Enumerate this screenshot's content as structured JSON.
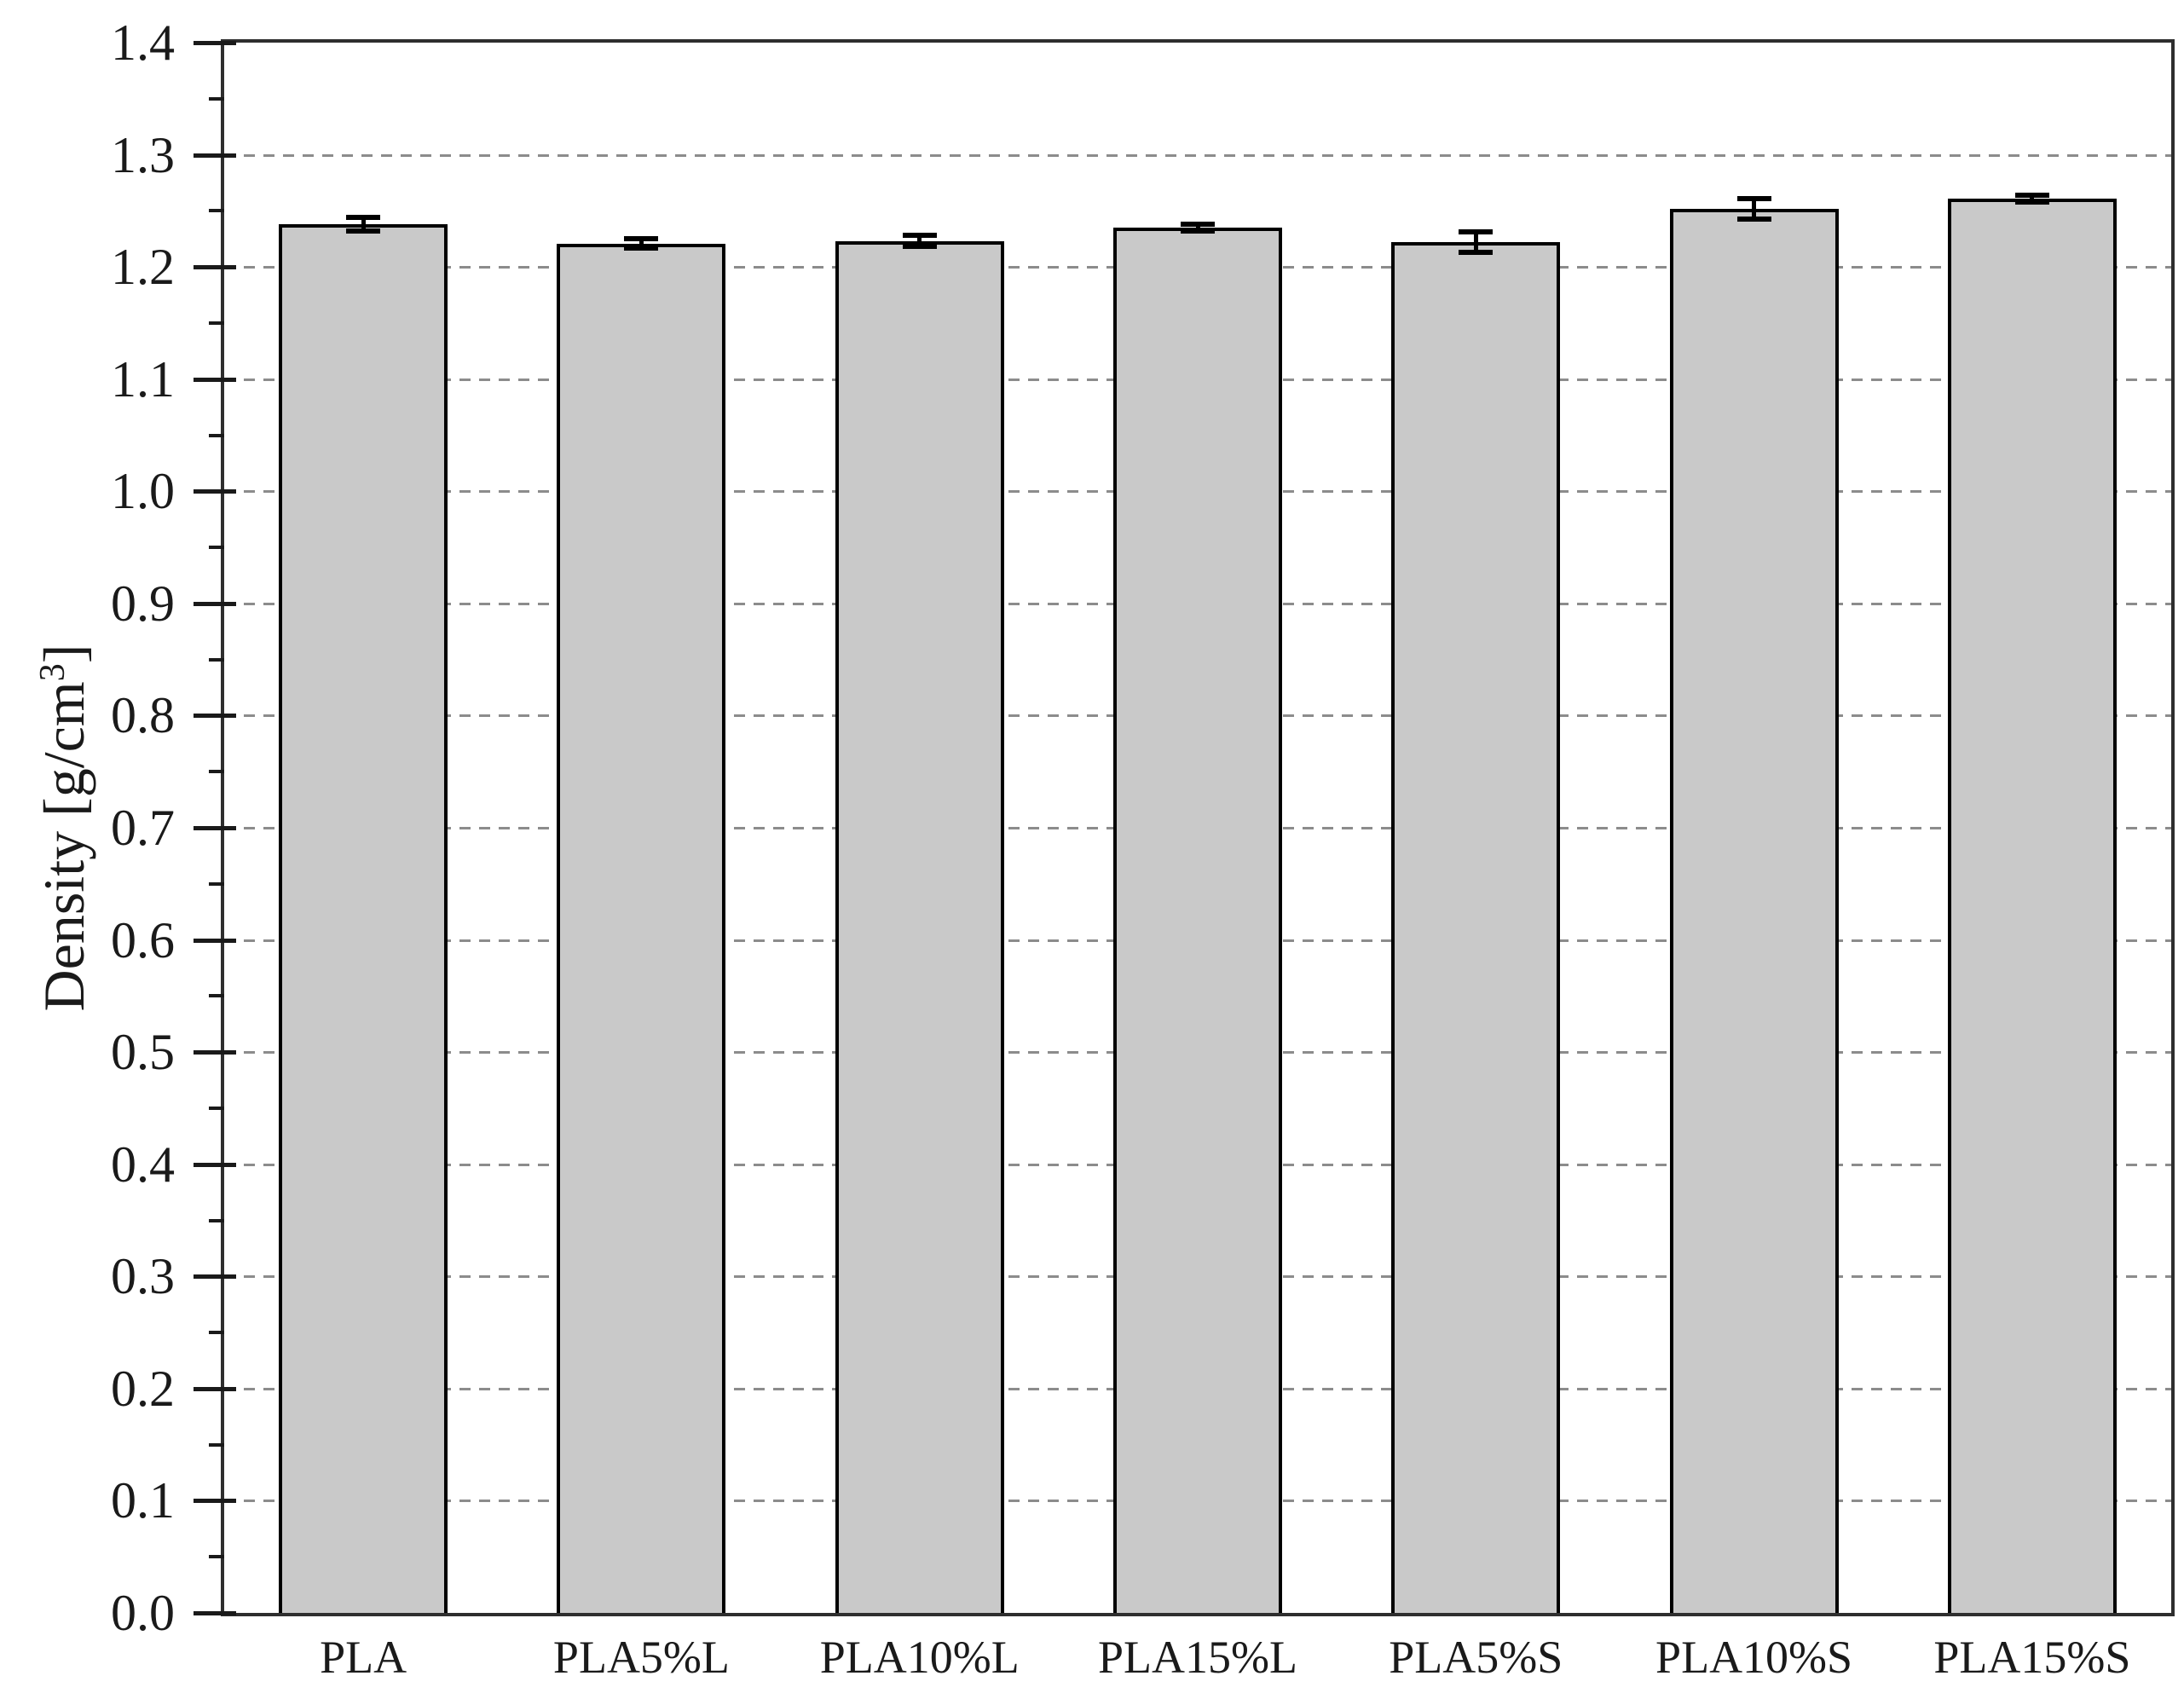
{
  "figure": {
    "background": "#ffffff"
  },
  "y_axis": {
    "title": "Density [g/cm³]",
    "title_prefix": "Density [g/cm",
    "title_sup": "3",
    "title_suffix": "]"
  },
  "chart_data": {
    "type": "bar",
    "title": "",
    "xlabel": "",
    "ylabel": "Density [g/cm³]",
    "categories": [
      "PLA",
      "PLA5%L",
      "PLA10%L",
      "PLA15%L",
      "PLA5%S",
      "PLA10%S",
      "PLA15%S"
    ],
    "values": [
      1.238,
      1.221,
      1.223,
      1.235,
      1.222,
      1.252,
      1.261
    ],
    "errors": [
      0.006,
      0.004,
      0.005,
      0.003,
      0.009,
      0.009,
      0.003
    ],
    "ylim": [
      0.0,
      1.4
    ],
    "ytick_step": 0.1,
    "yminor_step": 0.05,
    "ytick_labels": [
      "0.0",
      "0.1",
      "0.2",
      "0.3",
      "0.4",
      "0.5",
      "0.6",
      "0.7",
      "0.8",
      "0.9",
      "1.0",
      "1.1",
      "1.2",
      "1.3",
      "1.4"
    ],
    "grid": "horizontal-dashed",
    "legend": "none",
    "colors": {
      "bar_fill": "#c9c9c9",
      "bar_border": "#000000",
      "grid": "#8c8c8c",
      "axis": "#2e2e2e",
      "text": "#1a1a1a"
    }
  }
}
